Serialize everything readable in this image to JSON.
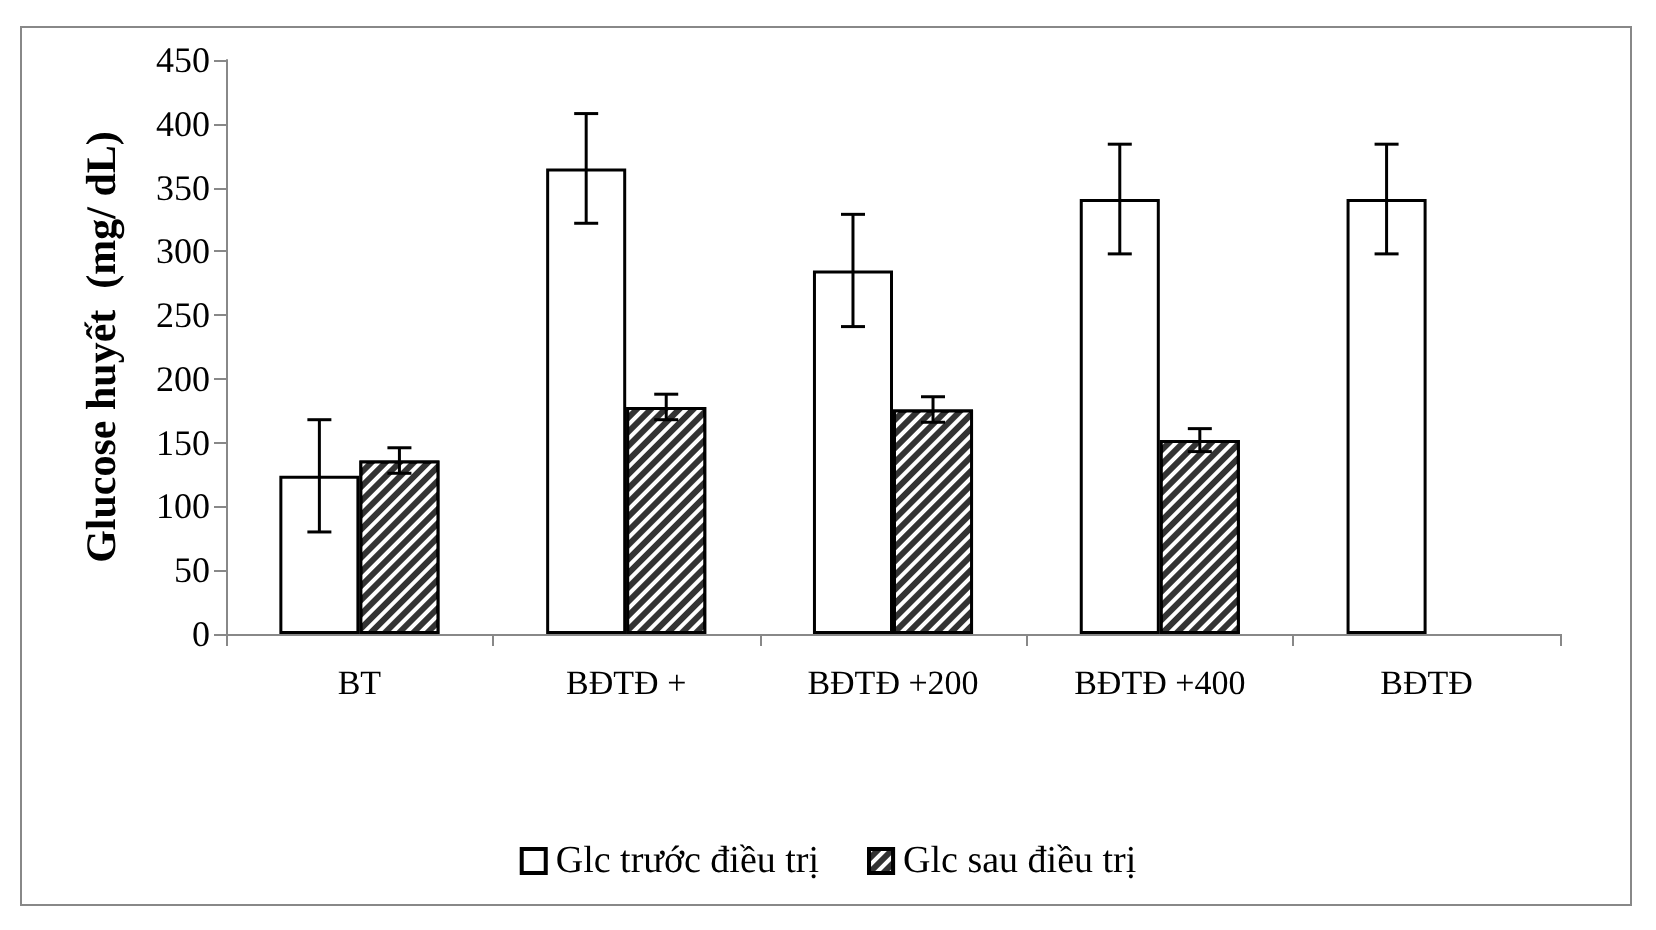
{
  "chart_data": {
    "type": "bar",
    "ylabel": "Glucose huyết  (mg/ dL)",
    "categories": [
      "BT",
      "BĐTĐ +",
      "BĐTĐ +200",
      "BĐTĐ +400",
      "BĐTĐ"
    ],
    "series": [
      {
        "name": "Glc trước điều trị",
        "color": "#ffffff",
        "values": [
          124,
          365,
          285,
          341,
          341
        ],
        "errors": [
          44,
          43,
          44,
          43,
          43
        ]
      },
      {
        "name": "Glc sau điều trị",
        "color": "#333333",
        "values": [
          136,
          178,
          176,
          152,
          null
        ],
        "errors": [
          10,
          10,
          10,
          9,
          null
        ]
      }
    ],
    "ylim": [
      0,
      450
    ],
    "yticks": [
      0,
      50,
      100,
      150,
      200,
      250,
      300,
      350,
      400,
      450
    ],
    "grid": false,
    "legend": "bottom"
  }
}
